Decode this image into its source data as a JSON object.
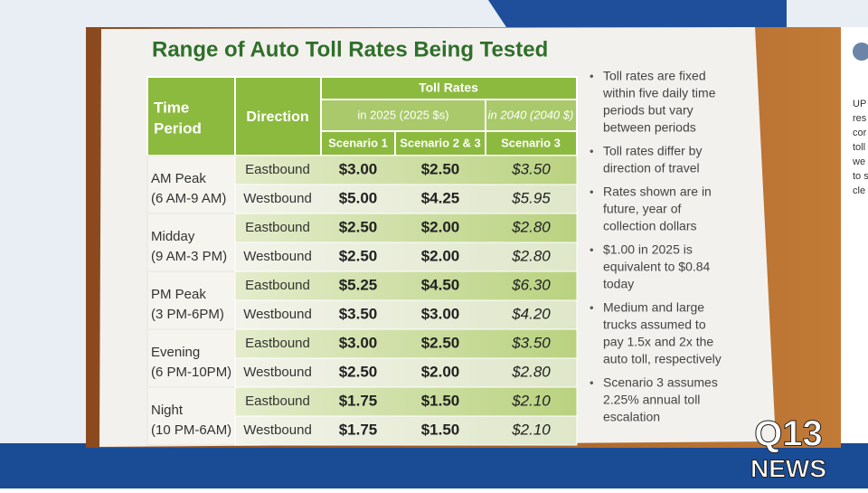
{
  "document": {
    "title": "Range of Auto Toll Rates Being Tested",
    "table": {
      "header": {
        "time_period": [
          "Time",
          "Period"
        ],
        "direction": "Direction",
        "toll_rates": "Toll Rates",
        "in_2025": "in 2025 (2025 $s)",
        "in_2040": "in 2040 (2040 $)",
        "scenario_1": "Scenario 1",
        "scenario_23": "Scenario 2 & 3",
        "scenario_3": "Scenario 3"
      },
      "periods": [
        {
          "name": "AM Peak",
          "hours": "(6 AM-9 AM)",
          "rows": [
            [
              "Eastbound",
              "$3.00",
              "$2.50",
              "$3.50"
            ],
            [
              "Westbound",
              "$5.00",
              "$4.25",
              "$5.95"
            ]
          ]
        },
        {
          "name": "Midday",
          "hours": "(9 AM-3 PM)",
          "rows": [
            [
              "Eastbound",
              "$2.50",
              "$2.00",
              "$2.80"
            ],
            [
              "Westbound",
              "$2.50",
              "$2.00",
              "$2.80"
            ]
          ]
        },
        {
          "name": "PM Peak",
          "hours": "(3 PM-6PM)",
          "rows": [
            [
              "Eastbound",
              "$5.25",
              "$4.50",
              "$6.30"
            ],
            [
              "Westbound",
              "$3.50",
              "$3.00",
              "$4.20"
            ]
          ]
        },
        {
          "name": "Evening",
          "hours": "(6 PM-10PM)",
          "rows": [
            [
              "Eastbound",
              "$3.00",
              "$2.50",
              "$3.50"
            ],
            [
              "Westbound",
              "$2.50",
              "$2.00",
              "$2.80"
            ]
          ]
        },
        {
          "name": "Night",
          "hours": "(10 PM-6AM)",
          "rows": [
            [
              "Eastbound",
              "$1.75",
              "$1.50",
              "$2.10"
            ],
            [
              "Westbound",
              "$1.75",
              "$1.50",
              "$2.10"
            ]
          ]
        }
      ]
    },
    "notes": [
      [
        "Toll rates are fixed",
        "within five daily time",
        "periods but vary",
        "between periods"
      ],
      [
        "Toll rates differ by",
        "direction of travel"
      ],
      [
        "Rates shown are in",
        "future, year of",
        "collection dollars"
      ],
      [
        "$1.00 in 2025 is",
        "equivalent to $0.84",
        "today"
      ],
      [
        "Medium and large",
        "trucks assumed to",
        "pay 1.5x and 2x the",
        "auto toll, respectively"
      ],
      [
        "Scenario 3 assumes",
        "2.25% annual toll",
        "escalation"
      ]
    ],
    "side_text": [
      "UP",
      "res",
      "cor",
      "toll",
      "we",
      "to s",
      "cle"
    ],
    "logo": {
      "top": "Q13",
      "bottom": "NEWS"
    }
  }
}
